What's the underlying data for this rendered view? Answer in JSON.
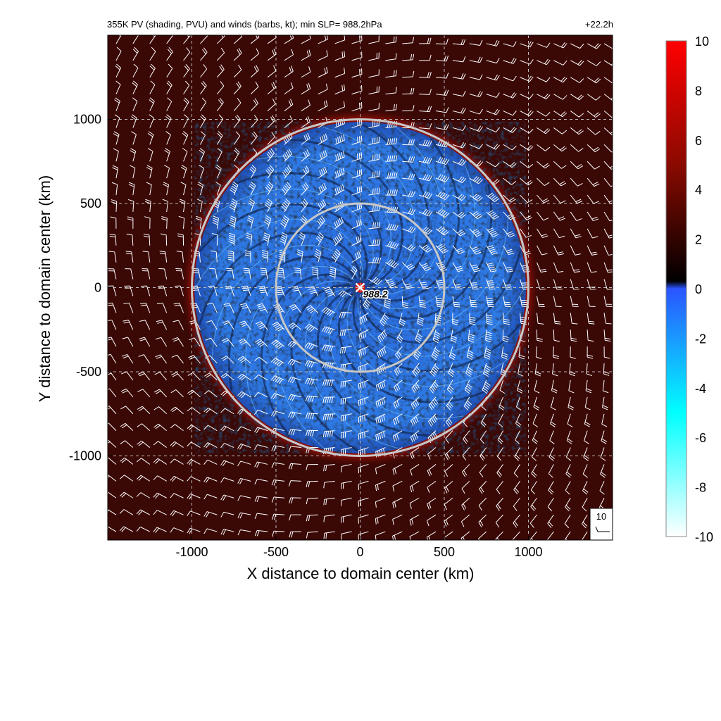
{
  "header": {
    "title": "355K PV (shading, PVU) and winds (barbs, kt); min SLP=  988.2hPa",
    "time": "+22.2h"
  },
  "chart_data": {
    "type": "heatmap",
    "title": "355K PV (shading, PVU) and winds (barbs, kt); min SLP=  988.2hPa",
    "xlabel": "X distance to domain center (km)",
    "ylabel": "Y distance to domain center (km)",
    "xlim": [
      -1500,
      1500
    ],
    "ylim": [
      -1500,
      1500
    ],
    "x_ticks": [
      -1000,
      -500,
      0,
      500,
      1000
    ],
    "y_ticks": [
      -1000,
      -500,
      0,
      500,
      1000
    ],
    "x_tick_labels": [
      "-1000",
      "-500",
      "0",
      "500",
      "1000"
    ],
    "y_tick_labels": [
      "-1000",
      "-500",
      "0",
      "500",
      "1000"
    ],
    "grid": true,
    "colorbar": {
      "label": "PVU",
      "min": -10,
      "max": 10,
      "ticks": [
        "10",
        "8",
        "6",
        "4",
        "2",
        "0",
        "-2",
        "-4",
        "-6",
        "-8",
        "-10"
      ],
      "stops": [
        {
          "value": 10,
          "color": "#ff0000"
        },
        {
          "value": 5,
          "color": "#8a0a00"
        },
        {
          "value": 0.3,
          "color": "#000000"
        },
        {
          "value": 0,
          "color": "#2a55ff"
        },
        {
          "value": -5,
          "color": "#00ffff"
        },
        {
          "value": -10,
          "color": "#ffffff"
        }
      ]
    },
    "range_rings_km": [
      500,
      1000
    ],
    "center_marker": {
      "x": 0,
      "y": 0,
      "label": "988.2"
    },
    "barb_reference": {
      "label": "10",
      "unit": "kt"
    },
    "colors": {
      "background_pv": "#3a0805",
      "negative_pv": "#2a70e0",
      "ring": "#c8c8c8",
      "barb": "#ffffff",
      "grid": "#bbbbbb"
    }
  }
}
